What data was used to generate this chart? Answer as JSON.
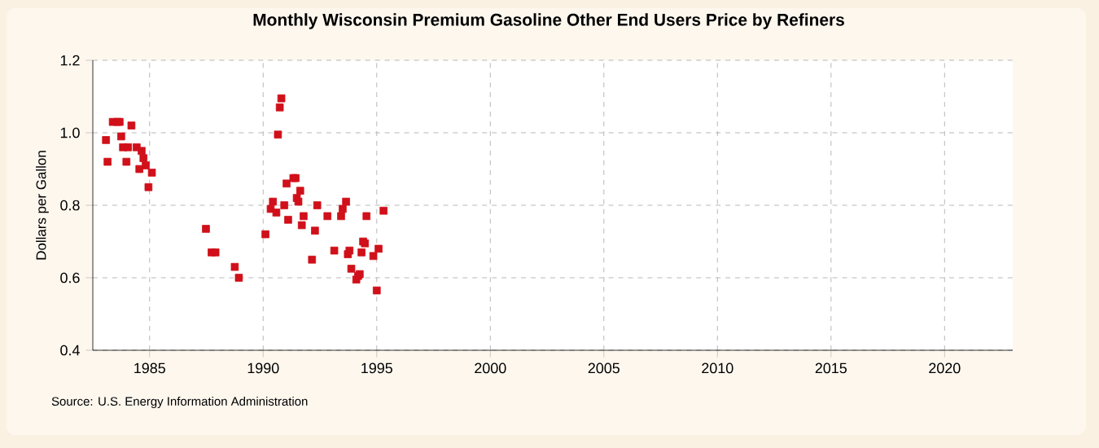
{
  "chart_data": {
    "type": "scatter",
    "title": "Monthly Wisconsin Premium Gasoline Other End Users Price by Refiners",
    "ylabel": "Dollars per Gallon",
    "annotations": [
      "Source: U.S. Energy Information Administration"
    ],
    "xlim": [
      1982.5,
      2023
    ],
    "xticks": [
      1985,
      1990,
      1995,
      2000,
      2005,
      2010,
      2015,
      2020
    ],
    "ylim": [
      0.4,
      1.2
    ],
    "yticks": [
      {
        "value": 0.4,
        "label": "0.4"
      },
      {
        "value": 0.6,
        "label": "0.6"
      },
      {
        "value": 0.8,
        "label": "0.8"
      },
      {
        "value": 1.0,
        "label": "1.0"
      },
      {
        "value": 1.2,
        "label": "1.2"
      }
    ],
    "grid": true,
    "marker": "square",
    "series": [
      {
        "color": "#d0101a",
        "x": [
          1983.08,
          1983.15,
          1983.38,
          1983.58,
          1983.68,
          1983.75,
          1983.83,
          1983.98,
          1984.05,
          1984.2,
          1984.43,
          1984.55,
          1984.65,
          1984.73,
          1984.83,
          1984.95,
          1985.1,
          1987.48,
          1987.73,
          1987.9,
          1988.75,
          1988.93,
          1990.1,
          1990.33,
          1990.43,
          1990.58,
          1990.65,
          1990.73,
          1990.8,
          1990.93,
          1991.03,
          1991.1,
          1991.33,
          1991.43,
          1991.48,
          1991.55,
          1991.63,
          1991.7,
          1991.78,
          1992.15,
          1992.28,
          1992.38,
          1992.83,
          1993.13,
          1993.43,
          1993.5,
          1993.65,
          1993.73,
          1993.8,
          1993.88,
          1994.1,
          1994.18,
          1994.25,
          1994.33,
          1994.4,
          1994.48,
          1994.55,
          1994.85,
          1995.0,
          1995.08,
          1995.3
        ],
        "values": [
          0.98,
          0.92,
          1.03,
          1.03,
          1.03,
          0.99,
          0.96,
          0.92,
          0.96,
          1.02,
          0.96,
          0.9,
          0.95,
          0.93,
          0.91,
          0.85,
          0.89,
          0.735,
          0.67,
          0.67,
          0.63,
          0.6,
          0.72,
          0.79,
          0.81,
          0.78,
          0.995,
          1.07,
          1.095,
          0.8,
          0.86,
          0.76,
          0.875,
          0.875,
          0.82,
          0.81,
          0.84,
          0.745,
          0.77,
          0.65,
          0.73,
          0.8,
          0.77,
          0.675,
          0.77,
          0.79,
          0.81,
          0.665,
          0.675,
          0.625,
          0.595,
          0.605,
          0.61,
          0.67,
          0.7,
          0.695,
          0.77,
          0.66,
          0.565,
          0.68,
          0.785
        ]
      }
    ]
  }
}
